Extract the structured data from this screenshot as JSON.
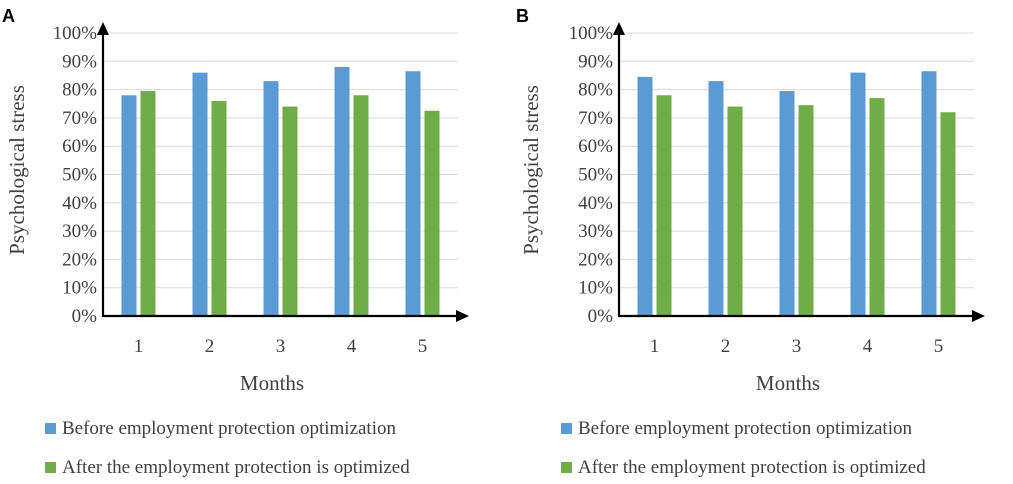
{
  "chart_data": [
    {
      "panel": "A",
      "type": "bar",
      "categories": [
        "1",
        "2",
        "3",
        "4",
        "5"
      ],
      "series": [
        {
          "name": "Before employment protection optimization",
          "color": "#5b9bd5",
          "values": [
            78,
            86,
            83,
            88,
            86.5
          ]
        },
        {
          "name": "After the employment protection is optimized",
          "color": "#70ad47",
          "values": [
            79.5,
            76,
            74,
            78,
            72.5
          ]
        }
      ],
      "xlabel": "Months",
      "ylabel": "Psychological stress",
      "ylim": [
        0,
        100
      ],
      "yticks": [
        "0%",
        "10%",
        "20%",
        "30%",
        "40%",
        "50%",
        "60%",
        "70%",
        "80%",
        "90%",
        "100%"
      ],
      "grid": true,
      "legend": "bottom"
    },
    {
      "panel": "B",
      "type": "bar",
      "categories": [
        "1",
        "2",
        "3",
        "4",
        "5"
      ],
      "series": [
        {
          "name": "Before employment protection optimization",
          "color": "#5b9bd5",
          "values": [
            84.5,
            83,
            79.5,
            86,
            86.5
          ]
        },
        {
          "name": "After the employment protection is optimized",
          "color": "#70ad47",
          "values": [
            78,
            74,
            74.5,
            77,
            72
          ]
        }
      ],
      "xlabel": "Months",
      "ylabel": "Psychological stress",
      "ylim": [
        0,
        100
      ],
      "yticks": [
        "0%",
        "10%",
        "20%",
        "30%",
        "40%",
        "50%",
        "60%",
        "70%",
        "80%",
        "90%",
        "100%"
      ],
      "grid": true,
      "legend": "bottom"
    }
  ]
}
